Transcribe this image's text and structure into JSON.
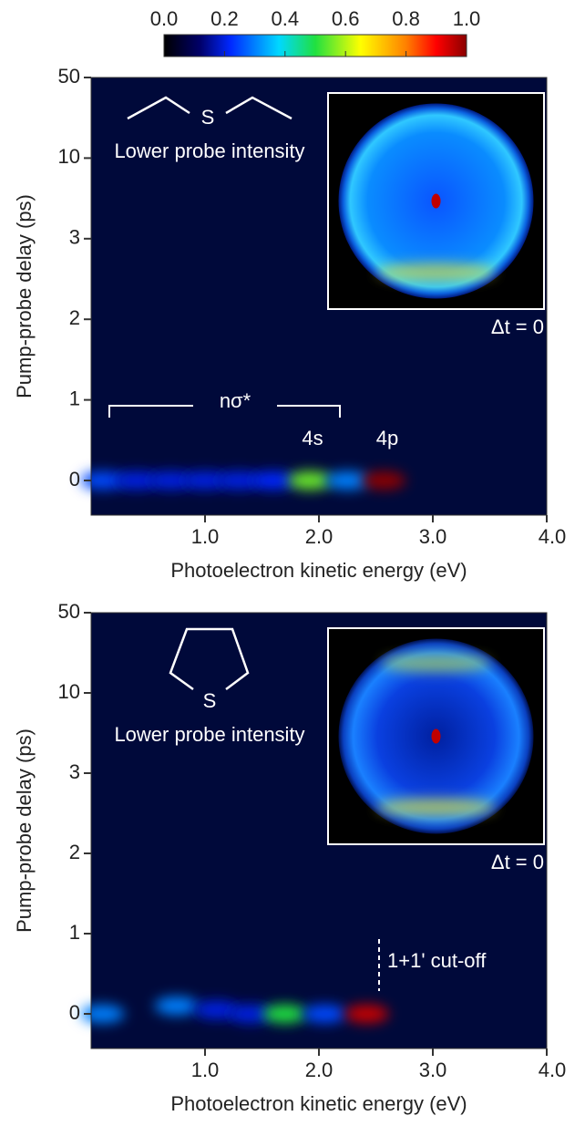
{
  "colorbar": {
    "ticks": [
      {
        "value": 0,
        "label": "0.0"
      },
      {
        "value": 0.2,
        "label": "0.2"
      },
      {
        "value": 0.4,
        "label": "0.4"
      },
      {
        "value": 0.6,
        "label": "0.6"
      },
      {
        "value": 0.8,
        "label": "0.8"
      },
      {
        "value": 1,
        "label": "1.0"
      }
    ],
    "lim": [
      0,
      1
    ],
    "stops": [
      0,
      0.12,
      0.22,
      0.38,
      0.5,
      0.65,
      0.8,
      0.9,
      1
    ],
    "colors": [
      "#000000",
      "#00006a",
      "#0028ff",
      "#00d8ff",
      "#20e040",
      "#ffff00",
      "#ff8000",
      "#ff0000",
      "#8a0000"
    ]
  },
  "chart_data": [
    {
      "type": "heatmap",
      "xlabel": "Photoelectron kinetic energy (eV)",
      "ylabel": "Pump-probe delay (ps)",
      "xlim": [
        0,
        4
      ],
      "xticks": [
        {
          "value": 1,
          "label": "1.0"
        },
        {
          "value": 2,
          "label": "2.0"
        },
        {
          "value": 3,
          "label": "3.0"
        },
        {
          "value": 4,
          "label": "4.0"
        }
      ],
      "ylim": [
        -0.43,
        50
      ],
      "yticks": [
        0,
        1,
        2,
        3,
        10,
        50
      ],
      "spots": {
        "x": [
          0.1,
          0.4,
          0.7,
          1.0,
          1.3,
          1.6,
          1.92,
          2.25,
          2.57
        ],
        "y": [
          0,
          0,
          0,
          0,
          0,
          0,
          0,
          0,
          0
        ],
        "values": [
          0.25,
          0.2,
          0.2,
          0.2,
          0.2,
          0.22,
          0.55,
          0.3,
          1.0
        ]
      },
      "annotations": {
        "molecule_label": "S",
        "note": "Lower probe intensity",
        "inset_label": "Δt = 0",
        "bands": [
          "nσ*",
          "4s",
          "4p"
        ]
      }
    },
    {
      "type": "heatmap",
      "xlabel": "Photoelectron kinetic energy (eV)",
      "ylabel": "Pump-probe delay (ps)",
      "xlim": [
        0,
        4
      ],
      "xticks": [
        {
          "value": 1,
          "label": "1.0"
        },
        {
          "value": 2,
          "label": "2.0"
        },
        {
          "value": 3,
          "label": "3.0"
        },
        {
          "value": 4,
          "label": "4.0"
        }
      ],
      "ylim": [
        -0.43,
        50
      ],
      "yticks": [
        0,
        1,
        2,
        3,
        10,
        50
      ],
      "spots": {
        "x": [
          0.1,
          0.75,
          1.1,
          1.4,
          1.7,
          2.05,
          2.42
        ],
        "y": [
          0,
          0.1,
          0.05,
          0,
          0,
          0,
          0
        ],
        "values": [
          0.3,
          0.3,
          0.2,
          0.2,
          0.5,
          0.25,
          0.95
        ]
      },
      "annotations": {
        "molecule_label": "S",
        "note": "Lower probe intensity",
        "inset_label": "Δt = 0",
        "cutoff": "1+1' cut-off"
      }
    }
  ]
}
